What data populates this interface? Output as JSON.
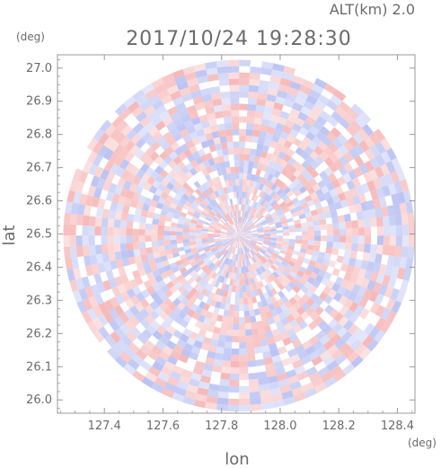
{
  "chart_data": {
    "type": "heatmap",
    "title": "2017/10/24 19:28:30",
    "subtitle": "ALT(km) 2.0",
    "xlabel": "lon",
    "ylabel": "lat",
    "x_unit": "(deg)",
    "y_unit": "(deg)",
    "xlim": [
      127.24,
      128.46
    ],
    "ylim": [
      25.96,
      27.04
    ],
    "x_ticks": [
      "127.4",
      "127.6",
      "127.8",
      "128.0",
      "128.2",
      "128.4"
    ],
    "x_tick_values": [
      127.4,
      127.6,
      127.8,
      128.0,
      128.2,
      128.4
    ],
    "y_ticks": [
      "26.0",
      "26.1",
      "26.2",
      "26.3",
      "26.4",
      "26.5",
      "26.6",
      "26.7",
      "26.8",
      "26.9",
      "27.0"
    ],
    "y_tick_values": [
      26.0,
      26.1,
      26.2,
      26.3,
      26.4,
      26.5,
      26.6,
      26.7,
      26.8,
      26.9,
      27.0
    ],
    "scan_center": [
      127.86,
      26.495
    ],
    "scan_radius_deg": 0.6,
    "colors": {
      "positive": "#f4a6a6",
      "negative": "#aab4f0",
      "axis": "#999999",
      "text": "#6b6b6b"
    }
  }
}
